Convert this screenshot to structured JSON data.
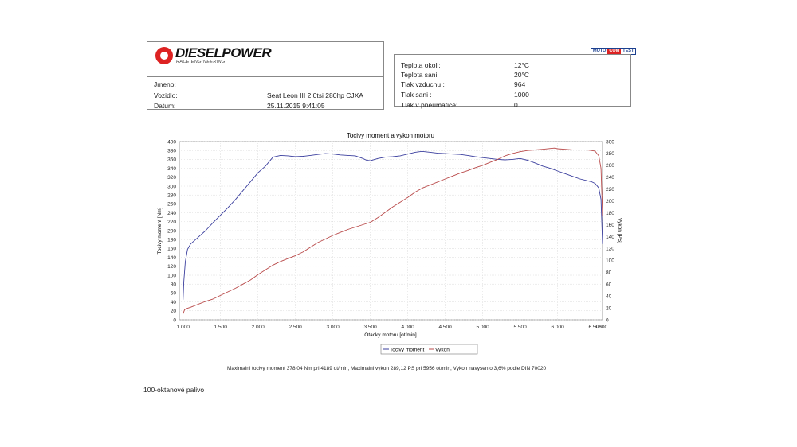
{
  "logo": {
    "brand": "DIESELPOWER",
    "tagline": "RACE ENGINEERING",
    "badge": [
      "MOTO",
      "COM",
      "TEST"
    ]
  },
  "vehicle": {
    "rows": [
      {
        "label": "Jmeno:",
        "value": ""
      },
      {
        "label": "Vozidlo:",
        "value": "Seat Leon III 2.0tsi 280hp CJXA"
      },
      {
        "label": "Datum:",
        "value": "25.11.2015 9:41:05"
      }
    ]
  },
  "conditions": {
    "rows": [
      {
        "label": "Teplota okoli:",
        "value": "12°C"
      },
      {
        "label": "Teplota sani:",
        "value": "20°C"
      },
      {
        "label": "Tlak vzduchu :",
        "value": "964"
      },
      {
        "label": "Tlak sani :",
        "value": "1000"
      },
      {
        "label": "Tlak v pneumatice:",
        "value": "0"
      }
    ]
  },
  "summary": "Maximalni tocivy moment 378,04 Nm pri 4189 ot/min,  Maximalni vykon 289,12 PS pri 5956 ot/min,  Vykon navysen o 3,6% podle DIN 70020",
  "fuel_note": "100-oktanové palivo",
  "chart_data": {
    "type": "line",
    "title": "Tocivy moment a vykon motoru",
    "xlabel": "Otacky motoru [ot/min]",
    "ylabel": "Tocivy moment [Nm]",
    "y2label": "Vykon [PS]",
    "xlim": [
      950,
      6600
    ],
    "ylim": [
      0,
      400
    ],
    "y2lim": [
      0,
      300
    ],
    "xticks": [
      1000,
      1500,
      2000,
      2500,
      3000,
      3500,
      4000,
      4500,
      5000,
      5500,
      6000,
      6500
    ],
    "xtick_labels": [
      "1 000",
      "1 500",
      "2 000",
      "2 500",
      "3 000",
      "3 500",
      "4 000",
      "4 500",
      "5 000",
      "5 500",
      "6 000",
      "6 500"
    ],
    "x_end_label": "6 600",
    "yticks": [
      0,
      20,
      40,
      60,
      80,
      100,
      120,
      140,
      160,
      180,
      200,
      220,
      240,
      260,
      280,
      300,
      320,
      340,
      360,
      380,
      400
    ],
    "y2ticks": [
      0,
      20,
      40,
      60,
      80,
      100,
      120,
      140,
      160,
      180,
      200,
      220,
      240,
      260,
      280,
      300
    ],
    "grid": true,
    "legend_position": "bottom-right",
    "series": [
      {
        "name": "Tocivy moment",
        "axis": "left",
        "color": "#3b3f9e",
        "points": [
          [
            1000,
            45
          ],
          [
            1010,
            85
          ],
          [
            1030,
            130
          ],
          [
            1060,
            158
          ],
          [
            1100,
            170
          ],
          [
            1200,
            185
          ],
          [
            1300,
            200
          ],
          [
            1400,
            218
          ],
          [
            1500,
            235
          ],
          [
            1600,
            252
          ],
          [
            1700,
            270
          ],
          [
            1800,
            290
          ],
          [
            1900,
            310
          ],
          [
            2000,
            330
          ],
          [
            2100,
            345
          ],
          [
            2150,
            355
          ],
          [
            2200,
            365
          ],
          [
            2300,
            369
          ],
          [
            2400,
            368
          ],
          [
            2500,
            366
          ],
          [
            2600,
            367
          ],
          [
            2700,
            369
          ],
          [
            2800,
            371
          ],
          [
            2900,
            373
          ],
          [
            3000,
            372
          ],
          [
            3100,
            370
          ],
          [
            3200,
            369
          ],
          [
            3300,
            368
          ],
          [
            3400,
            362
          ],
          [
            3450,
            358
          ],
          [
            3500,
            357
          ],
          [
            3600,
            362
          ],
          [
            3700,
            365
          ],
          [
            3800,
            366
          ],
          [
            3900,
            368
          ],
          [
            4000,
            372
          ],
          [
            4100,
            376
          ],
          [
            4189,
            378
          ],
          [
            4300,
            376
          ],
          [
            4400,
            374
          ],
          [
            4500,
            373
          ],
          [
            4600,
            372
          ],
          [
            4700,
            371
          ],
          [
            4800,
            369
          ],
          [
            4900,
            366
          ],
          [
            5000,
            364
          ],
          [
            5100,
            362
          ],
          [
            5200,
            360
          ],
          [
            5300,
            359
          ],
          [
            5400,
            360
          ],
          [
            5500,
            362
          ],
          [
            5600,
            358
          ],
          [
            5700,
            352
          ],
          [
            5800,
            345
          ],
          [
            5900,
            340
          ],
          [
            6000,
            334
          ],
          [
            6100,
            328
          ],
          [
            6200,
            322
          ],
          [
            6300,
            316
          ],
          [
            6400,
            312
          ],
          [
            6450,
            310
          ],
          [
            6500,
            306
          ],
          [
            6550,
            296
          ],
          [
            6580,
            270
          ],
          [
            6600,
            170
          ]
        ]
      },
      {
        "name": "Vykon",
        "axis": "right",
        "color": "#b94a4a",
        "points": [
          [
            1000,
            10
          ],
          [
            1020,
            17
          ],
          [
            1050,
            19
          ],
          [
            1100,
            21
          ],
          [
            1200,
            26
          ],
          [
            1300,
            31
          ],
          [
            1400,
            35
          ],
          [
            1500,
            41
          ],
          [
            1600,
            47
          ],
          [
            1700,
            53
          ],
          [
            1800,
            60
          ],
          [
            1900,
            67
          ],
          [
            2000,
            76
          ],
          [
            2100,
            84
          ],
          [
            2200,
            92
          ],
          [
            2300,
            98
          ],
          [
            2400,
            103
          ],
          [
            2500,
            108
          ],
          [
            2600,
            114
          ],
          [
            2700,
            122
          ],
          [
            2800,
            130
          ],
          [
            2900,
            136
          ],
          [
            3000,
            142
          ],
          [
            3100,
            147
          ],
          [
            3200,
            152
          ],
          [
            3300,
            156
          ],
          [
            3400,
            160
          ],
          [
            3500,
            164
          ],
          [
            3600,
            172
          ],
          [
            3700,
            181
          ],
          [
            3800,
            190
          ],
          [
            3900,
            198
          ],
          [
            4000,
            206
          ],
          [
            4100,
            215
          ],
          [
            4200,
            222
          ],
          [
            4300,
            227
          ],
          [
            4400,
            232
          ],
          [
            4500,
            237
          ],
          [
            4600,
            242
          ],
          [
            4700,
            247
          ],
          [
            4800,
            251
          ],
          [
            4900,
            256
          ],
          [
            5000,
            260
          ],
          [
            5100,
            265
          ],
          [
            5200,
            270
          ],
          [
            5300,
            276
          ],
          [
            5400,
            280
          ],
          [
            5500,
            283
          ],
          [
            5600,
            285
          ],
          [
            5700,
            286
          ],
          [
            5800,
            287
          ],
          [
            5956,
            289
          ],
          [
            6000,
            288
          ],
          [
            6100,
            287
          ],
          [
            6200,
            286
          ],
          [
            6300,
            286
          ],
          [
            6400,
            286
          ],
          [
            6450,
            285
          ],
          [
            6500,
            284
          ],
          [
            6550,
            276
          ],
          [
            6580,
            255
          ],
          [
            6600,
            175
          ]
        ]
      }
    ]
  }
}
